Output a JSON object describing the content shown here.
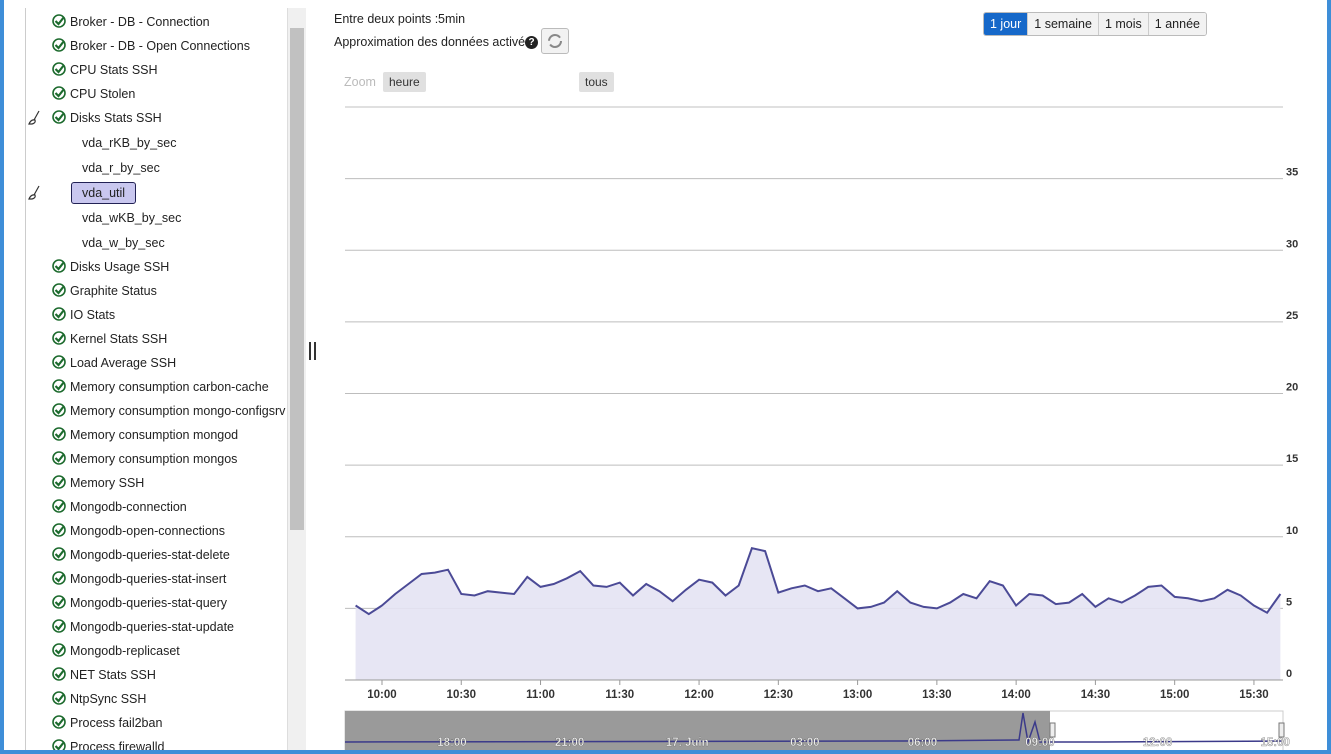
{
  "sidebar": {
    "items": [
      {
        "label": "Broker - DB - Connection"
      },
      {
        "label": "Broker - DB - Open Connections"
      },
      {
        "label": "CPU Stats SSH"
      },
      {
        "label": "CPU Stolen"
      },
      {
        "label": "Disks Stats SSH",
        "children": [
          {
            "label": "vda_rKB_by_sec"
          },
          {
            "label": "vda_r_by_sec"
          },
          {
            "label": "vda_util",
            "selected": true
          },
          {
            "label": "vda_wKB_by_sec"
          },
          {
            "label": "vda_w_by_sec"
          }
        ]
      },
      {
        "label": "Disks Usage SSH"
      },
      {
        "label": "Graphite Status"
      },
      {
        "label": "IO Stats"
      },
      {
        "label": "Kernel Stats SSH"
      },
      {
        "label": "Load Average SSH"
      },
      {
        "label": "Memory consumption carbon-cache"
      },
      {
        "label": "Memory consumption mongo-configsrv"
      },
      {
        "label": "Memory consumption mongod"
      },
      {
        "label": "Memory consumption mongos"
      },
      {
        "label": "Memory SSH"
      },
      {
        "label": "Mongodb-connection"
      },
      {
        "label": "Mongodb-open-connections"
      },
      {
        "label": "Mongodb-queries-stat-delete"
      },
      {
        "label": "Mongodb-queries-stat-insert"
      },
      {
        "label": "Mongodb-queries-stat-query"
      },
      {
        "label": "Mongodb-queries-stat-update"
      },
      {
        "label": "Mongodb-replicaset"
      },
      {
        "label": "NET Stats SSH"
      },
      {
        "label": "NtpSync SSH"
      },
      {
        "label": "Process fail2ban"
      },
      {
        "label": "Process firewalld"
      }
    ]
  },
  "header": {
    "interval_label": "Entre deux points :",
    "interval_value": "5min",
    "approximation": "Approximation des données activée",
    "help": "?",
    "ranges": [
      {
        "label": "1 jour",
        "active": true
      },
      {
        "label": "1 semaine"
      },
      {
        "label": "1 mois"
      },
      {
        "label": "1 année"
      }
    ]
  },
  "zoom": {
    "label": "Zoom",
    "buttons": [
      "heure",
      "tous"
    ]
  },
  "chart_data": {
    "type": "area",
    "x": [
      "09:50",
      "09:55",
      "10:00",
      "10:05",
      "10:10",
      "10:15",
      "10:20",
      "10:25",
      "10:30",
      "10:35",
      "10:40",
      "10:45",
      "10:50",
      "10:55",
      "11:00",
      "11:05",
      "11:10",
      "11:15",
      "11:20",
      "11:25",
      "11:30",
      "11:35",
      "11:40",
      "11:45",
      "11:50",
      "11:55",
      "12:00",
      "12:05",
      "12:10",
      "12:15",
      "12:20",
      "12:25",
      "12:30",
      "12:35",
      "12:40",
      "12:45",
      "12:50",
      "12:55",
      "13:00",
      "13:05",
      "13:10",
      "13:15",
      "13:20",
      "13:25",
      "13:30",
      "13:35",
      "13:40",
      "13:45",
      "13:50",
      "13:55",
      "14:00",
      "14:05",
      "14:10",
      "14:15",
      "14:20",
      "14:25",
      "14:30",
      "14:35",
      "14:40",
      "14:45",
      "14:50",
      "14:55",
      "15:00",
      "15:05",
      "15:10",
      "15:15",
      "15:20",
      "15:25",
      "15:30",
      "15:35",
      "15:40"
    ],
    "values": [
      5.2,
      4.6,
      5.2,
      6.0,
      6.7,
      7.4,
      7.5,
      7.7,
      6.0,
      5.9,
      6.2,
      6.1,
      6.0,
      7.2,
      6.5,
      6.7,
      7.1,
      7.6,
      6.6,
      6.5,
      6.8,
      5.9,
      6.7,
      6.2,
      5.5,
      6.3,
      7.0,
      6.8,
      5.9,
      6.6,
      9.2,
      9.0,
      6.1,
      6.4,
      6.6,
      6.2,
      6.4,
      5.7,
      5.0,
      5.1,
      5.4,
      6.2,
      5.4,
      5.1,
      5.0,
      5.4,
      6.0,
      5.7,
      6.9,
      6.6,
      5.2,
      6.0,
      5.9,
      5.3,
      5.4,
      6.0,
      5.1,
      5.7,
      5.4,
      5.9,
      6.5,
      6.6,
      5.8,
      5.7,
      5.5,
      5.7,
      6.3,
      5.9,
      5.2,
      4.7,
      6.0
    ],
    "color": "#4b4a96",
    "fill": "#e4e3f3",
    "xlim": [
      "09:46",
      "15:41"
    ],
    "xticks": [
      "10:00",
      "10:30",
      "11:00",
      "11:30",
      "12:00",
      "12:30",
      "13:00",
      "13:30",
      "14:00",
      "14:30",
      "15:00",
      "15:30"
    ],
    "ylim": [
      0,
      40
    ],
    "yticks": [
      0,
      5,
      10,
      15,
      20,
      25,
      30,
      35
    ],
    "grid": true,
    "navigator_labels": [
      "18:00",
      "21:00",
      "17. Juin",
      "03:00",
      "06:00",
      "09:00",
      "12:00",
      "15:00"
    ]
  }
}
